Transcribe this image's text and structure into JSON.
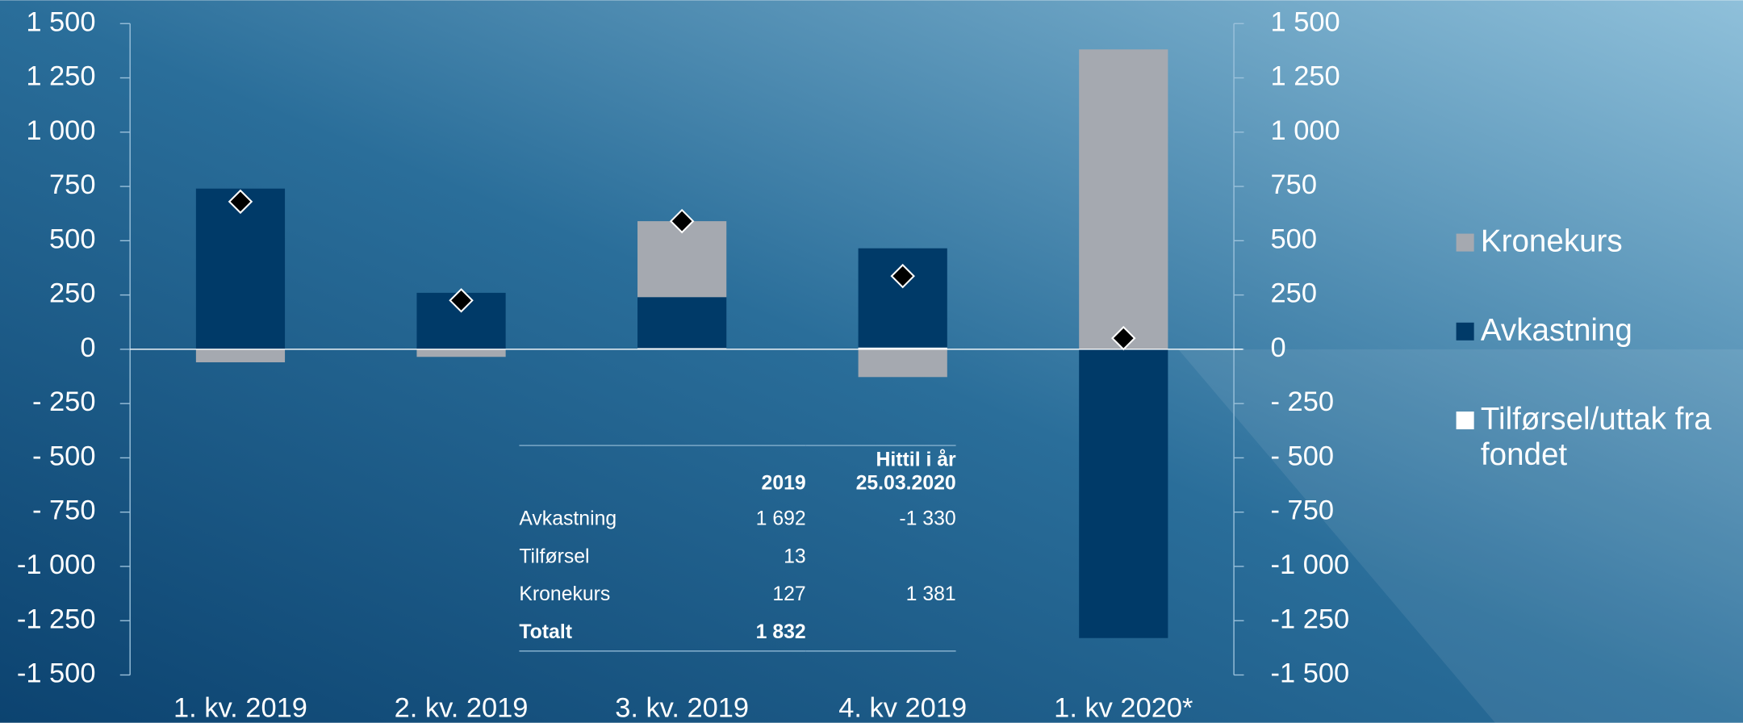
{
  "chart_data": {
    "type": "bar",
    "stacked": true,
    "categories": [
      "1. kv. 2019",
      "2. kv. 2019",
      "3. kv. 2019",
      "4. kv 2019",
      "1. kv 2020*"
    ],
    "series": [
      {
        "name": "Kronekurs",
        "color": "#a5a9b0",
        "values": [
          -60,
          -35,
          350,
          -128,
          1381
        ]
      },
      {
        "name": "Avkastning",
        "color": "#003a68",
        "values": [
          740,
          260,
          235,
          457,
          -1330
        ]
      },
      {
        "name": "Tilførsel/uttak fra fondet",
        "color": "#ffffff",
        "values": [
          0,
          0,
          5,
          8,
          0
        ]
      }
    ],
    "markers": {
      "color": "#000000",
      "values": [
        680,
        225,
        590,
        337,
        51
      ]
    },
    "ylim": [
      -1500,
      1500
    ],
    "yticks": [
      {
        "value": -1500,
        "label": "-1 500"
      },
      {
        "value": -1250,
        "label": "-1 250"
      },
      {
        "value": -1000,
        "label": "-1 000"
      },
      {
        "value": -750,
        "label": "- 750"
      },
      {
        "value": -500,
        "label": "- 500"
      },
      {
        "value": -250,
        "label": "- 250"
      },
      0,
      250,
      500,
      750,
      {
        "value": 1000,
        "label": "1 000"
      },
      {
        "value": 1250,
        "label": "1 250"
      },
      {
        "value": 1500,
        "label": "1 500"
      }
    ],
    "y2lim": [
      -1500,
      1500
    ],
    "y2ticks": [
      {
        "value": -1500,
        "label": "-1 500"
      },
      {
        "value": -1250,
        "label": "-1 250"
      },
      {
        "value": -1000,
        "label": "-1 000"
      },
      {
        "value": -750,
        "label": "- 750"
      },
      {
        "value": -500,
        "label": "- 500"
      },
      {
        "value": -250,
        "label": "- 250"
      },
      0,
      250,
      500,
      750,
      {
        "value": 1000,
        "label": "1 000"
      },
      {
        "value": 1250,
        "label": "1 250"
      },
      {
        "value": 1500,
        "label": "1 500"
      }
    ],
    "legend": "right",
    "table": {
      "columns": [
        "2019",
        "Hittil i år 25.03.2020"
      ],
      "rows": [
        {
          "label": "Avkastning",
          "values": [
            "1 692",
            "-1 330"
          ]
        },
        {
          "label": "Tilførsel",
          "values": [
            "13"
          ]
        },
        {
          "label": "Kronekurs",
          "values": [
            "127",
            "1 381"
          ]
        },
        {
          "label": "Totalt",
          "values": [
            "1 832"
          ]
        }
      ]
    }
  }
}
